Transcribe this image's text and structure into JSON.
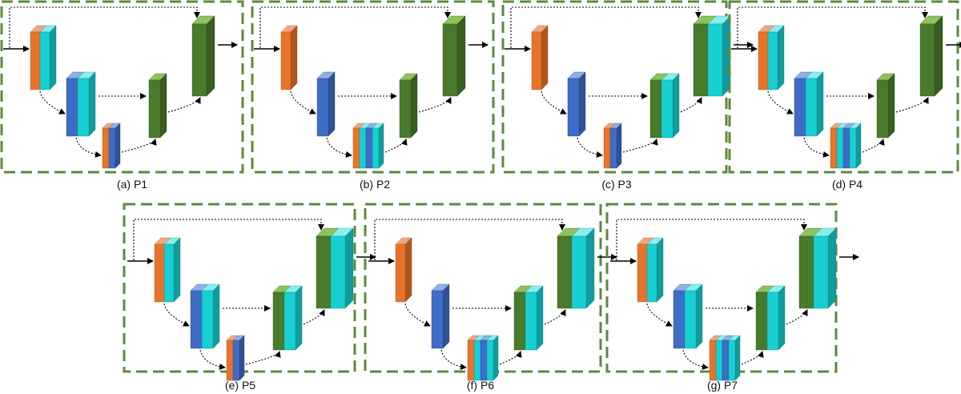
{
  "colors": {
    "frame": "#5c8a3a",
    "orange": "#e8742b",
    "orange_light": "#f0a67c",
    "cyan": "#17cfd0",
    "cyan_light": "#8aeeee",
    "blue": "#3f6cc4",
    "blue_light": "#8fb0e6",
    "green": "#4a7a2c",
    "green_light": "#8cc35a",
    "arrow": "#000000"
  },
  "panels": [
    {
      "id": "p1",
      "caption": "(a) P1",
      "enc": [
        [
          "orange",
          "cyan"
        ],
        [
          "blue",
          "cyan"
        ],
        [
          "orange",
          "blue"
        ]
      ],
      "dec": [
        [
          "green"
        ],
        [
          "green"
        ]
      ]
    },
    {
      "id": "p2",
      "caption": "(b) P2",
      "enc": [
        [
          "orange"
        ],
        [
          "blue"
        ],
        [
          "orange",
          "cyan",
          "blue",
          "cyan"
        ]
      ],
      "dec": [
        [
          "green"
        ],
        [
          "green"
        ]
      ]
    },
    {
      "id": "p3",
      "caption": "(c) P3",
      "enc": [
        [
          "orange"
        ],
        [
          "blue"
        ],
        [
          "orange",
          "blue"
        ]
      ],
      "dec": [
        [
          "green",
          "cyan"
        ],
        [
          "green",
          "cyan"
        ]
      ]
    },
    {
      "id": "p4",
      "caption": "(d) P4",
      "enc": [
        [
          "orange",
          "cyan"
        ],
        [
          "blue",
          "cyan"
        ],
        [
          "orange",
          "cyan",
          "blue",
          "cyan"
        ]
      ],
      "dec": [
        [
          "green"
        ],
        [
          "green"
        ]
      ]
    },
    {
      "id": "p5",
      "caption": "(e) P5",
      "enc": [
        [
          "orange",
          "cyan"
        ],
        [
          "blue",
          "cyan"
        ],
        [
          "orange",
          "blue"
        ]
      ],
      "dec": [
        [
          "green",
          "cyan"
        ],
        [
          "green",
          "cyan"
        ]
      ]
    },
    {
      "id": "p6",
      "caption": "(f) P6",
      "enc": [
        [
          "orange"
        ],
        [
          "blue"
        ],
        [
          "orange",
          "cyan",
          "blue",
          "cyan"
        ]
      ],
      "dec": [
        [
          "green",
          "cyan"
        ],
        [
          "green",
          "cyan"
        ]
      ]
    },
    {
      "id": "p7",
      "caption": "(g) P7",
      "enc": [
        [
          "orange",
          "cyan"
        ],
        [
          "blue",
          "cyan"
        ],
        [
          "orange",
          "cyan",
          "blue",
          "cyan"
        ]
      ],
      "dec": [
        [
          "green",
          "cyan"
        ],
        [
          "green",
          "cyan"
        ]
      ]
    }
  ]
}
